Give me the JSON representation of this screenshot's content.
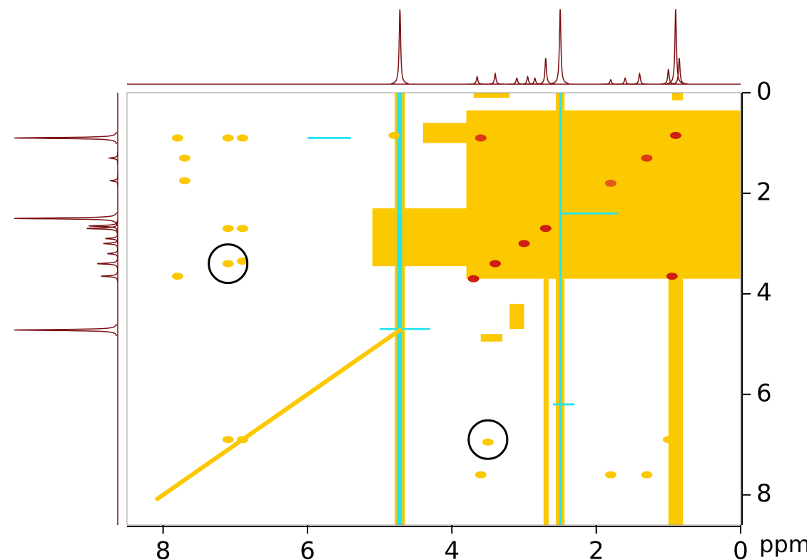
{
  "chart_data": {
    "type": "contour",
    "x_label": "ppm",
    "xlim": [
      8.5,
      0
    ],
    "xticks": [
      8,
      6,
      4,
      2,
      0
    ],
    "ylim": [
      0,
      8.6
    ],
    "yticks": [
      0,
      2,
      4,
      6,
      8
    ],
    "regions": {
      "color": [
        "#fcc800",
        "#fcc800",
        "#fcc800",
        "#fcc800",
        "#fcc800",
        "#fcc800",
        "#fcc800",
        "#fcc800",
        "#fcc800",
        "#fcc800",
        "#fcc800",
        "#fcc800",
        "#22e5f0",
        "#22e5f0",
        "#22e5f0",
        "#22e5f0",
        "#22e5f0",
        "#22e5f0"
      ],
      "x": [
        [
          4.4,
          0
        ],
        [
          3.8,
          0
        ],
        [
          5.1,
          3.8
        ],
        [
          1.0,
          0.8
        ],
        [
          4.79,
          4.65
        ],
        [
          2.56,
          2.44
        ],
        [
          2.73,
          2.66
        ],
        [
          3.2,
          3.0
        ],
        [
          3.6,
          3.3
        ],
        [
          3.7,
          3.2
        ],
        [
          3.55,
          2.9
        ],
        [
          0.95,
          0.8
        ],
        [
          4.76,
          4.69
        ],
        [
          2.51,
          2.48
        ],
        [
          6.0,
          5.4
        ],
        [
          5.0,
          4.3
        ],
        [
          2.5,
          1.7
        ],
        [
          2.6,
          2.3
        ]
      ],
      "y": [
        [
          0.6,
          1.0
        ],
        [
          0.35,
          3.7
        ],
        [
          2.3,
          3.45
        ],
        [
          3.7,
          8.6
        ],
        [
          0,
          8.6
        ],
        [
          0,
          8.6
        ],
        [
          3.7,
          8.6
        ],
        [
          4.2,
          4.7
        ],
        [
          4.8,
          4.95
        ],
        [
          0.0,
          0.1
        ],
        [
          1.0,
          1.2
        ],
        [
          0,
          0.15
        ],
        [
          0,
          8.6
        ],
        [
          0,
          8.6
        ],
        [
          0.88,
          0.92
        ],
        [
          4.68,
          4.72
        ],
        [
          2.38,
          2.42
        ],
        [
          6.18,
          6.22
        ]
      ]
    },
    "diagonal": {
      "x": [
        8.1,
        4.7
      ],
      "y": [
        8.1,
        4.7
      ],
      "color": "#fcc800"
    },
    "peaks": {
      "x": [
        7.8,
        7.1,
        6.9,
        7.7,
        7.7,
        7.1,
        6.9,
        7.8,
        7.1,
        6.9,
        7.1,
        6.9,
        3.6,
        1.8,
        1.3,
        1.0,
        3.5,
        3.6,
        0.9,
        1.3,
        1.8,
        2.7,
        3.0,
        3.4,
        3.7,
        0.95,
        4.8,
        4.5
      ],
      "y": [
        0.9,
        0.9,
        0.9,
        1.3,
        1.75,
        2.7,
        2.7,
        3.65,
        3.4,
        3.35,
        6.9,
        6.9,
        7.6,
        7.6,
        7.6,
        6.9,
        6.95,
        0.9,
        0.85,
        1.3,
        1.8,
        2.7,
        3.0,
        3.4,
        3.7,
        3.65,
        0.85,
        3.2
      ],
      "color": [
        "#fcc800",
        "#fcc800",
        "#fcc800",
        "#fcc800",
        "#fcc800",
        "#fcc800",
        "#fcc800",
        "#fcc800",
        "#fcc800",
        "#fcc800",
        "#fcc800",
        "#fcc800",
        "#fcc800",
        "#fcc800",
        "#fcc800",
        "#fcc800",
        "#fcc800",
        "#dd3a10",
        "#cc1f10",
        "#dd3a10",
        "#dd5a20",
        "#cc1f10",
        "#cc1f10",
        "#cc1f10",
        "#cc1f10",
        "#cc1f10",
        "#fcc800",
        "#fcc800"
      ]
    },
    "circles": {
      "x": [
        7.1,
        3.5
      ],
      "y": [
        3.4,
        6.9
      ]
    },
    "x_projection": {
      "ppm": [
        4.72,
        2.5,
        0.9,
        0.85,
        2.7,
        3.65,
        3.4,
        3.1,
        2.95,
        2.85,
        1.4,
        1.6,
        1.0,
        1.8
      ],
      "values": [
        100,
        100,
        100,
        35,
        35,
        10,
        14,
        8,
        10,
        8,
        14,
        8,
        20,
        6
      ]
    },
    "y_projection": {
      "ppm": [
        0.9,
        2.5,
        4.72,
        2.7,
        2.65,
        3.4,
        3.65,
        3.0,
        1.3,
        1.75,
        3.2,
        2.9
      ],
      "values": [
        100,
        100,
        100,
        30,
        28,
        20,
        16,
        14,
        8,
        7,
        10,
        12
      ]
    }
  }
}
